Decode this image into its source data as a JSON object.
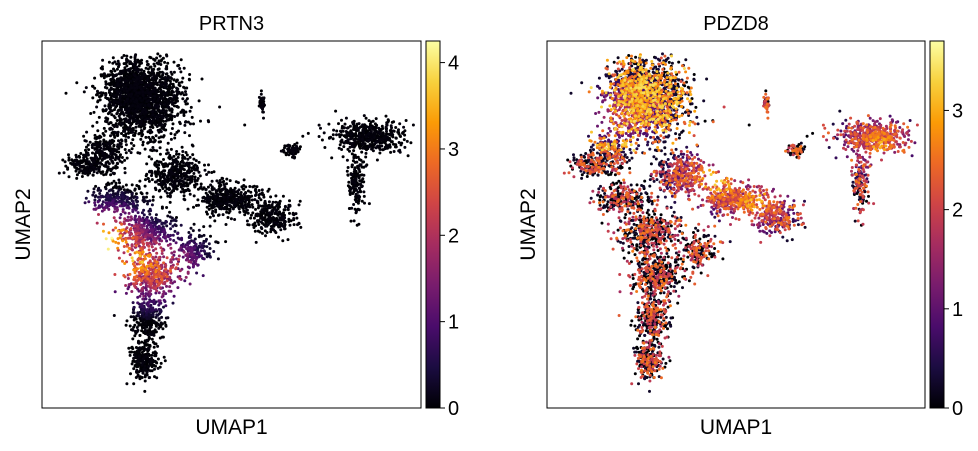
{
  "chart_data": [
    {
      "type": "scatter",
      "title": "PRTN3",
      "xlabel": "UMAP1",
      "ylabel": "UMAP2",
      "colormap": "inferno",
      "color_range": [
        0,
        4.25
      ],
      "colorbar_ticks": [
        "0",
        "1",
        "2",
        "3",
        "4"
      ],
      "grid": false,
      "axis_ticks": false,
      "high_expression_regions": [
        {
          "umap1": 0.16,
          "umap2": 0.45,
          "level": 3.9
        },
        {
          "umap1": 0.24,
          "umap2": 0.4,
          "level": 3.2
        },
        {
          "umap1": 0.3,
          "umap2": 0.38,
          "level": 2.6
        }
      ]
    },
    {
      "type": "scatter",
      "title": "PDZD8",
      "xlabel": "UMAP1",
      "ylabel": "UMAP2",
      "colormap": "inferno",
      "color_range": [
        0,
        3.7
      ],
      "colorbar_ticks": [
        "0",
        "1",
        "2",
        "3"
      ],
      "grid": false,
      "axis_ticks": false,
      "high_expression_regions": [
        {
          "umap1": 0.45,
          "umap2": 0.62,
          "level": 3.0
        },
        {
          "umap1": 0.55,
          "umap2": 0.56,
          "level": 2.7
        },
        {
          "umap1": 0.88,
          "umap2": 0.72,
          "level": 2.6
        },
        {
          "umap1": 0.2,
          "umap2": 0.8,
          "level": 2.2
        }
      ]
    }
  ],
  "colors": {
    "background": "#ffffff",
    "axis": "#000000",
    "inferno": [
      "#000004",
      "#1b0c41",
      "#4a0c6b",
      "#781c6d",
      "#a52c60",
      "#cf4446",
      "#ed6925",
      "#fb9b06",
      "#f7d13d",
      "#fcffa4"
    ]
  }
}
